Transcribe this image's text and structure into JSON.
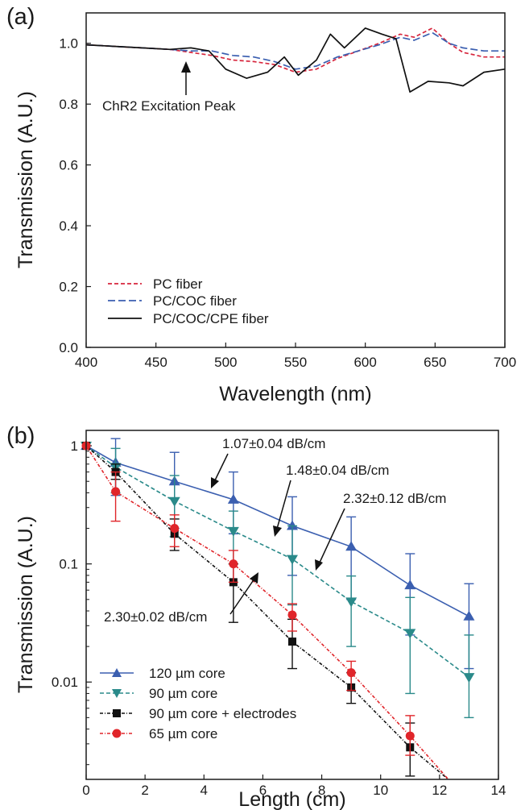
{
  "chart_data": [
    {
      "panel_label": "(a)",
      "type": "line",
      "xlabel": "Wavelength (nm)",
      "ylabel": "Transmission (A.U.)",
      "xlim": [
        400,
        700
      ],
      "ylim": [
        0.0,
        1.1
      ],
      "x_ticks": [
        "400",
        "450",
        "500",
        "550",
        "600",
        "650",
        "700"
      ],
      "y_ticks": [
        "0.0",
        "0.2",
        "0.4",
        "0.6",
        "0.8",
        "1.0"
      ],
      "legend_position": "bottom-left",
      "annotation": {
        "text": "ChR2 Excitation Peak",
        "x": 470
      },
      "series": [
        {
          "name": "PC fiber",
          "color": "#d7263d",
          "dash": "dashed",
          "points": [
            [
              400,
              0.995
            ],
            [
              420,
              0.99
            ],
            [
              440,
              0.985
            ],
            [
              460,
              0.98
            ],
            [
              475,
              0.97
            ],
            [
              490,
              0.96
            ],
            [
              505,
              0.945
            ],
            [
              520,
              0.94
            ],
            [
              535,
              0.93
            ],
            [
              550,
              0.905
            ],
            [
              565,
              0.915
            ],
            [
              580,
              0.95
            ],
            [
              595,
              0.975
            ],
            [
              610,
              1.0
            ],
            [
              625,
              1.03
            ],
            [
              635,
              1.02
            ],
            [
              648,
              1.05
            ],
            [
              660,
              1.0
            ],
            [
              670,
              0.97
            ],
            [
              685,
              0.955
            ],
            [
              700,
              0.955
            ]
          ]
        },
        {
          "name": "PC/COC fiber",
          "color": "#3b5fb0",
          "dash": "longdash",
          "points": [
            [
              400,
              0.995
            ],
            [
              420,
              0.99
            ],
            [
              440,
              0.985
            ],
            [
              460,
              0.98
            ],
            [
              475,
              0.975
            ],
            [
              490,
              0.975
            ],
            [
              505,
              0.96
            ],
            [
              520,
              0.955
            ],
            [
              535,
              0.94
            ],
            [
              550,
              0.915
            ],
            [
              565,
              0.925
            ],
            [
              580,
              0.955
            ],
            [
              595,
              0.975
            ],
            [
              610,
              0.995
            ],
            [
              625,
              1.02
            ],
            [
              635,
              1.01
            ],
            [
              648,
              1.035
            ],
            [
              660,
              1.0
            ],
            [
              670,
              0.985
            ],
            [
              685,
              0.975
            ],
            [
              700,
              0.975
            ]
          ]
        },
        {
          "name": "PC/COC/CPE fiber",
          "color": "#111111",
          "dash": "solid",
          "points": [
            [
              400,
              0.995
            ],
            [
              420,
              0.99
            ],
            [
              440,
              0.985
            ],
            [
              460,
              0.98
            ],
            [
              475,
              0.985
            ],
            [
              488,
              0.975
            ],
            [
              500,
              0.915
            ],
            [
              515,
              0.885
            ],
            [
              530,
              0.905
            ],
            [
              542,
              0.955
            ],
            [
              552,
              0.895
            ],
            [
              565,
              0.945
            ],
            [
              575,
              1.03
            ],
            [
              585,
              0.985
            ],
            [
              600,
              1.05
            ],
            [
              612,
              1.03
            ],
            [
              622,
              1.015
            ],
            [
              632,
              0.84
            ],
            [
              645,
              0.875
            ],
            [
              660,
              0.87
            ],
            [
              670,
              0.86
            ],
            [
              685,
              0.905
            ],
            [
              700,
              0.915
            ]
          ]
        }
      ]
    },
    {
      "panel_label": "(b)",
      "type": "line",
      "xlabel": "Length (cm)",
      "ylabel": "Transmission (A.U.)",
      "xlim": [
        0,
        14
      ],
      "ylim": [
        0.0015,
        1.35
      ],
      "y_scale": "log",
      "x_ticks": [
        "0",
        "2",
        "4",
        "6",
        "8",
        "10",
        "12",
        "14"
      ],
      "y_ticks": [
        "0.01",
        "0.1",
        "1"
      ],
      "legend_position": "bottom-left",
      "annotations": [
        {
          "text": "1.07±0.04 dB/cm"
        },
        {
          "text": "1.48±0.04 dB/cm"
        },
        {
          "text": "2.32±0.12 dB/cm"
        },
        {
          "text": "2.30±0.02 dB/cm"
        }
      ],
      "series": [
        {
          "name": "120 µm core",
          "color": "#3b5fb0",
          "marker": "triangle-up",
          "x": [
            0,
            1,
            3,
            5,
            7,
            9,
            11,
            13
          ],
          "y": [
            1.0,
            0.72,
            0.5,
            0.35,
            0.21,
            0.14,
            0.066,
            0.036
          ],
          "err_low": [
            1.0,
            0.38,
            0.2,
            0.18,
            0.08,
            0.05,
            0.025,
            0.013
          ],
          "err_high": [
            1.0,
            1.15,
            0.88,
            0.6,
            0.37,
            0.25,
            0.122,
            0.068
          ]
        },
        {
          "name": "90 µm core",
          "color": "#2a8a8a",
          "marker": "triangle-down",
          "x": [
            0,
            1,
            3,
            5,
            7,
            9,
            11,
            13
          ],
          "y": [
            1.0,
            0.66,
            0.34,
            0.19,
            0.11,
            0.048,
            0.026,
            0.011
          ],
          "err_low": [
            1.0,
            0.4,
            0.17,
            0.1,
            0.045,
            0.02,
            0.008,
            0.005
          ],
          "err_high": [
            1.0,
            0.95,
            0.56,
            0.28,
            0.21,
            0.079,
            0.052,
            0.025
          ]
        },
        {
          "name": "90 µm core + electrodes",
          "color": "#111111",
          "marker": "square",
          "x": [
            0,
            1,
            3,
            5,
            7,
            9,
            11,
            12.3
          ],
          "y": [
            1.0,
            0.6,
            0.18,
            0.07,
            0.022,
            0.009,
            0.0028,
            0.0015
          ],
          "err_low": [
            1.0,
            0.52,
            0.13,
            0.032,
            0.013,
            0.0066,
            0.0016,
            0.0015
          ],
          "err_high": [
            1.0,
            0.7,
            0.24,
            0.1,
            0.034,
            0.012,
            0.0045,
            0.0015
          ]
        },
        {
          "name": "65 µm core",
          "color": "#e0252a",
          "marker": "circle",
          "x": [
            0,
            1,
            3,
            5,
            7,
            9,
            11,
            12.3
          ],
          "y": [
            1.0,
            0.41,
            0.2,
            0.1,
            0.037,
            0.012,
            0.0035,
            0.0015
          ],
          "err_low": [
            1.0,
            0.23,
            0.14,
            0.07,
            0.027,
            0.0085,
            0.0024,
            0.0015
          ],
          "err_high": [
            1.0,
            0.6,
            0.26,
            0.13,
            0.046,
            0.015,
            0.0052,
            0.0015
          ]
        }
      ]
    }
  ]
}
